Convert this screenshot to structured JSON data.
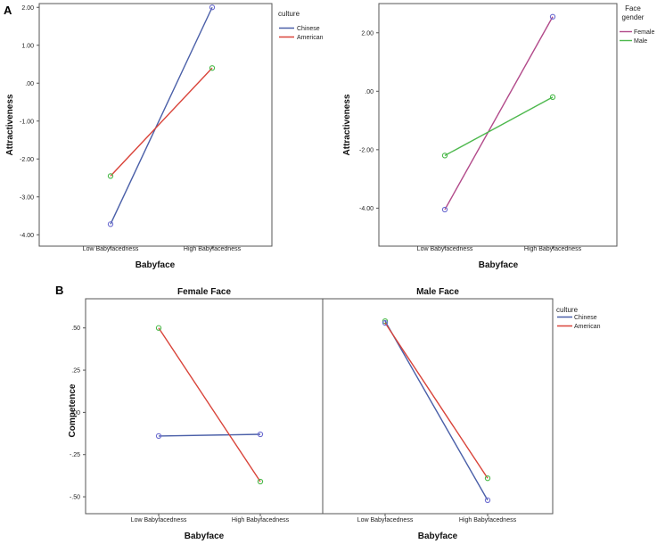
{
  "panel_labels": {
    "a": "A",
    "b": "B"
  },
  "colors": {
    "chinese": "#4a5fa8",
    "american": "#d9443a",
    "female": "#b24a8a",
    "male": "#4db84d",
    "marker_blue": "#6a6ad0",
    "marker_green": "#48b848"
  },
  "chart_data": [
    {
      "type": "line",
      "title": "",
      "xlabel": "Babyface",
      "ylabel": "Attractiveness",
      "categories": [
        "Low Babyfacedness",
        "High Babyfacedness"
      ],
      "ylim": [
        -4.3,
        2.1
      ],
      "yticks": [
        2.0,
        1.0,
        0.0,
        -1.0,
        -2.0,
        -3.0,
        -4.0
      ],
      "yticklabels": [
        "2.00",
        "1.00",
        ".00",
        "-1.00",
        "-2.00",
        "-3.00",
        "-4.00"
      ],
      "legend": {
        "title": "culture",
        "position": "top-right"
      },
      "series": [
        {
          "name": "Chinese",
          "values": [
            -3.72,
            2.0
          ],
          "color_key": "chinese",
          "marker_keys": [
            "marker_blue",
            "marker_blue"
          ]
        },
        {
          "name": "American",
          "values": [
            -2.45,
            0.4
          ],
          "color_key": "american",
          "marker_keys": [
            "marker_green",
            "marker_green"
          ]
        }
      ]
    },
    {
      "type": "line",
      "title": "",
      "xlabel": "Babyface",
      "ylabel": "Attractiveness",
      "categories": [
        "Low Babyfacedness",
        "High Babyfacedness"
      ],
      "ylim": [
        -5.3,
        3.0
      ],
      "yticks": [
        2.0,
        0.0,
        -2.0,
        -4.0
      ],
      "yticklabels": [
        "2.00",
        ".00",
        "-2.00",
        "-4.00"
      ],
      "legend": {
        "title": "Face gender",
        "position": "top-right"
      },
      "series": [
        {
          "name": "Female",
          "values": [
            -4.05,
            2.55
          ],
          "color_key": "female",
          "marker_keys": [
            "marker_blue",
            "marker_blue"
          ]
        },
        {
          "name": "Male",
          "values": [
            -2.2,
            -0.2
          ],
          "color_key": "male",
          "marker_keys": [
            "marker_green",
            "marker_green"
          ]
        }
      ]
    },
    {
      "type": "line",
      "title": "Female Face",
      "xlabel": "Babyface",
      "ylabel": "Competence",
      "categories": [
        "Low Babyfacedness",
        "High Babyfacedness"
      ],
      "ylim": [
        -0.6,
        0.62
      ],
      "yticks": [
        0.5,
        0.25,
        0.0,
        -0.25,
        -0.5
      ],
      "yticklabels": [
        ".50",
        ".25",
        ".00",
        "-.25",
        "-.50"
      ],
      "series": [
        {
          "name": "Chinese",
          "values": [
            -0.14,
            -0.13
          ],
          "color_key": "chinese",
          "marker_keys": [
            "marker_blue",
            "marker_blue"
          ]
        },
        {
          "name": "American",
          "values": [
            0.5,
            -0.41
          ],
          "color_key": "american",
          "marker_keys": [
            "marker_green",
            "marker_green"
          ]
        }
      ]
    },
    {
      "type": "line",
      "title": "Male Face",
      "xlabel": "Babyface",
      "ylabel": "",
      "categories": [
        "Low Babyfacedness",
        "High Babyfacedness"
      ],
      "ylim": [
        -0.6,
        0.62
      ],
      "yticks": [],
      "yticklabels": [],
      "legend": {
        "title": "culture",
        "position": "top-right"
      },
      "series": [
        {
          "name": "Chinese",
          "values": [
            0.54,
            -0.52
          ],
          "color_key": "chinese",
          "marker_keys": [
            "marker_green",
            "marker_blue"
          ]
        },
        {
          "name": "American",
          "values": [
            0.53,
            -0.39
          ],
          "color_key": "american",
          "marker_keys": [
            "marker_blue",
            "marker_green"
          ]
        }
      ]
    }
  ]
}
